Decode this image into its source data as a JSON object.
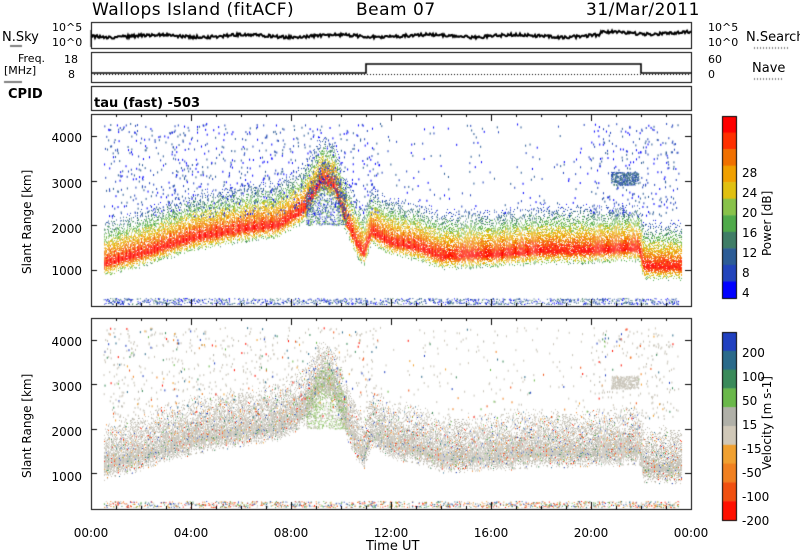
{
  "header": {
    "station": "Wallops Island (fitACF)",
    "beam": "Beam 07",
    "date": "31/Mar/2011"
  },
  "top_panels": {
    "nsky_label": "N.Sky",
    "nsearch_label": "N.Search",
    "freq_label": "Freq.",
    "freq_unit": "[MHz]",
    "nave_label": "Nave",
    "cpid_label": "CPID",
    "cpid_text": "tau (fast) -503",
    "noise_ticks_left": [
      "10^5",
      "10^0"
    ],
    "noise_ticks_right": [
      "10^5",
      "10^0"
    ],
    "freq_ticks": [
      "18",
      "8"
    ],
    "nave_ticks": [
      "60",
      "0"
    ]
  },
  "colors": {
    "power_scale": [
      "#0000ff",
      "#2244bb",
      "#2c5c96",
      "#3f7d66",
      "#4faa4a",
      "#88c24a",
      "#e0c010",
      "#f0a000",
      "#f07000",
      "#ff3000",
      "#ff0000"
    ],
    "velocity_scale": [
      "#2040c0",
      "#2a6a8a",
      "#3a8a5a",
      "#6ab84a",
      "#b0b0a8",
      "#d0c8b8",
      "#f0a030",
      "#f08020",
      "#f05010",
      "#ff1000"
    ]
  },
  "chart_data": [
    {
      "type": "heatmap",
      "title": "",
      "xlabel": "Time UT",
      "ylabel": "Slant Range [km]",
      "x_ticks": [
        "00:00",
        "04:00",
        "08:00",
        "12:00",
        "16:00",
        "20:00",
        "00:00"
      ],
      "x_range_hours": [
        0,
        24
      ],
      "ylim": [
        180,
        4500
      ],
      "y_ticks": [
        1000,
        2000,
        3000,
        4000
      ],
      "colorbar_label": "Power [dB]",
      "colorbar_ticks": [
        4,
        8,
        12,
        16,
        20,
        24,
        28
      ],
      "colorbar_range": [
        0,
        30
      ],
      "ridge_profile": {
        "time_h": [
          0.5,
          2,
          4,
          6,
          7.5,
          8.5,
          9.2,
          9.7,
          10.2,
          10.6,
          10.9,
          11.2,
          12,
          13,
          14,
          16,
          18,
          20,
          21.9,
          22.1,
          23.6
        ],
        "range_km": [
          1130,
          1350,
          1700,
          1900,
          2000,
          2350,
          3000,
          2900,
          2100,
          1600,
          1350,
          1850,
          1600,
          1500,
          1300,
          1330,
          1420,
          1420,
          1480,
          1060,
          1060
        ]
      }
    },
    {
      "type": "heatmap",
      "title": "",
      "xlabel": "Time UT",
      "ylabel": "Slant Range [km]",
      "x_ticks": [
        "00:00",
        "04:00",
        "08:00",
        "12:00",
        "16:00",
        "20:00",
        "00:00"
      ],
      "x_range_hours": [
        0,
        24
      ],
      "ylim": [
        180,
        4500
      ],
      "y_ticks": [
        1000,
        2000,
        3000,
        4000
      ],
      "colorbar_label": "Velocity [m s-1]",
      "colorbar_ticks": [
        200,
        100,
        50,
        15,
        -15,
        -50,
        -100,
        -200
      ],
      "colorbar_range": [
        -250,
        250
      ]
    }
  ]
}
